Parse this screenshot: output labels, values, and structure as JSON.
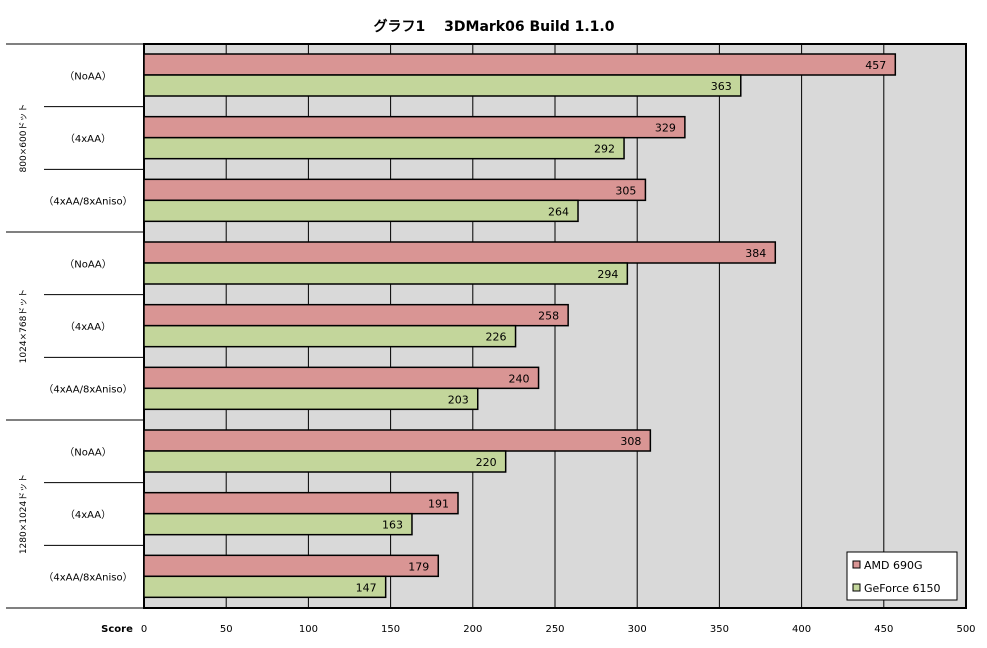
{
  "chart_data": {
    "type": "bar",
    "orientation": "horizontal",
    "title": "グラフ1　 3DMark06 Build 1.1.0",
    "xlabel": "Score",
    "xlim": [
      0,
      500
    ],
    "xticks": [
      0,
      50,
      100,
      150,
      200,
      250,
      300,
      350,
      400,
      450,
      500
    ],
    "grid": true,
    "legend_position": "bottom-right",
    "groups": [
      {
        "label": "800×600ドット",
        "categories": [
          "（NoAA）",
          "（4xAA）",
          "（4xAA/8xAniso）"
        ]
      },
      {
        "label": "1024×768ドット",
        "categories": [
          "（NoAA）",
          "（4xAA）",
          "（4xAA/8xAniso）"
        ]
      },
      {
        "label": "1280×1024ドット",
        "categories": [
          "（NoAA）",
          "（4xAA）",
          "（4xAA/8xAniso）"
        ]
      }
    ],
    "series": [
      {
        "name": "AMD 690G",
        "color": "#d99594",
        "values": [
          457,
          329,
          305,
          384,
          258,
          240,
          308,
          191,
          179
        ]
      },
      {
        "name": "GeForce 6150",
        "color": "#c3d69b",
        "values": [
          363,
          292,
          264,
          294,
          226,
          203,
          220,
          163,
          147
        ]
      }
    ]
  }
}
